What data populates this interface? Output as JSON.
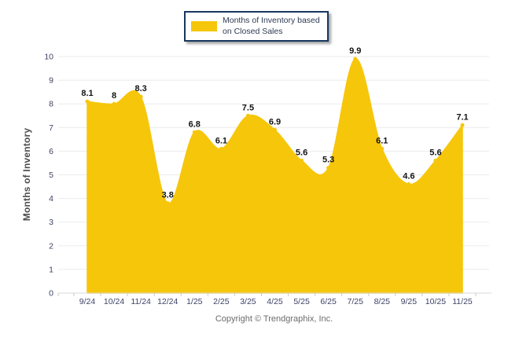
{
  "legend": {
    "label": "Months of Inventory based\non Closed Sales"
  },
  "footer": {
    "text": "Copyright © Trendgraphix, Inc."
  },
  "colors": {
    "area": "#F6C60A",
    "grid": "#EBEBEB",
    "axis_line": "#D8D8D8",
    "tick": "#C9C9C9",
    "axis_label": "#3E4366",
    "data_label": "#141414",
    "y_title": "#4D4D4D",
    "legend_border": "#17375E",
    "legend_text": "#2E3B52",
    "footer_text": "#6B6B6B"
  },
  "chart_data": {
    "type": "area",
    "title": "",
    "xlabel": "",
    "ylabel": "Months of Inventory",
    "legend": "Months of Inventory based on Closed Sales",
    "legend_position": "top",
    "grid": "horizontal",
    "ylim": [
      0,
      10
    ],
    "y_ticks": [
      0,
      1,
      2,
      3,
      4,
      5,
      6,
      7,
      8,
      9,
      10
    ],
    "categories": [
      "9/24",
      "10/24",
      "11/24",
      "12/24",
      "1/25",
      "2/25",
      "3/25",
      "4/25",
      "5/25",
      "6/25",
      "7/25",
      "8/25",
      "9/25",
      "10/25",
      "11/25"
    ],
    "values": [
      8.1,
      8,
      8.3,
      3.8,
      6.8,
      6.1,
      7.5,
      6.9,
      5.6,
      5.3,
      9.9,
      6.1,
      4.6,
      5.6,
      7.1
    ],
    "series_name": "Months of Inventory based on Closed Sales",
    "smoothing": "spline",
    "footer": "Copyright © Trendgraphix, Inc."
  }
}
